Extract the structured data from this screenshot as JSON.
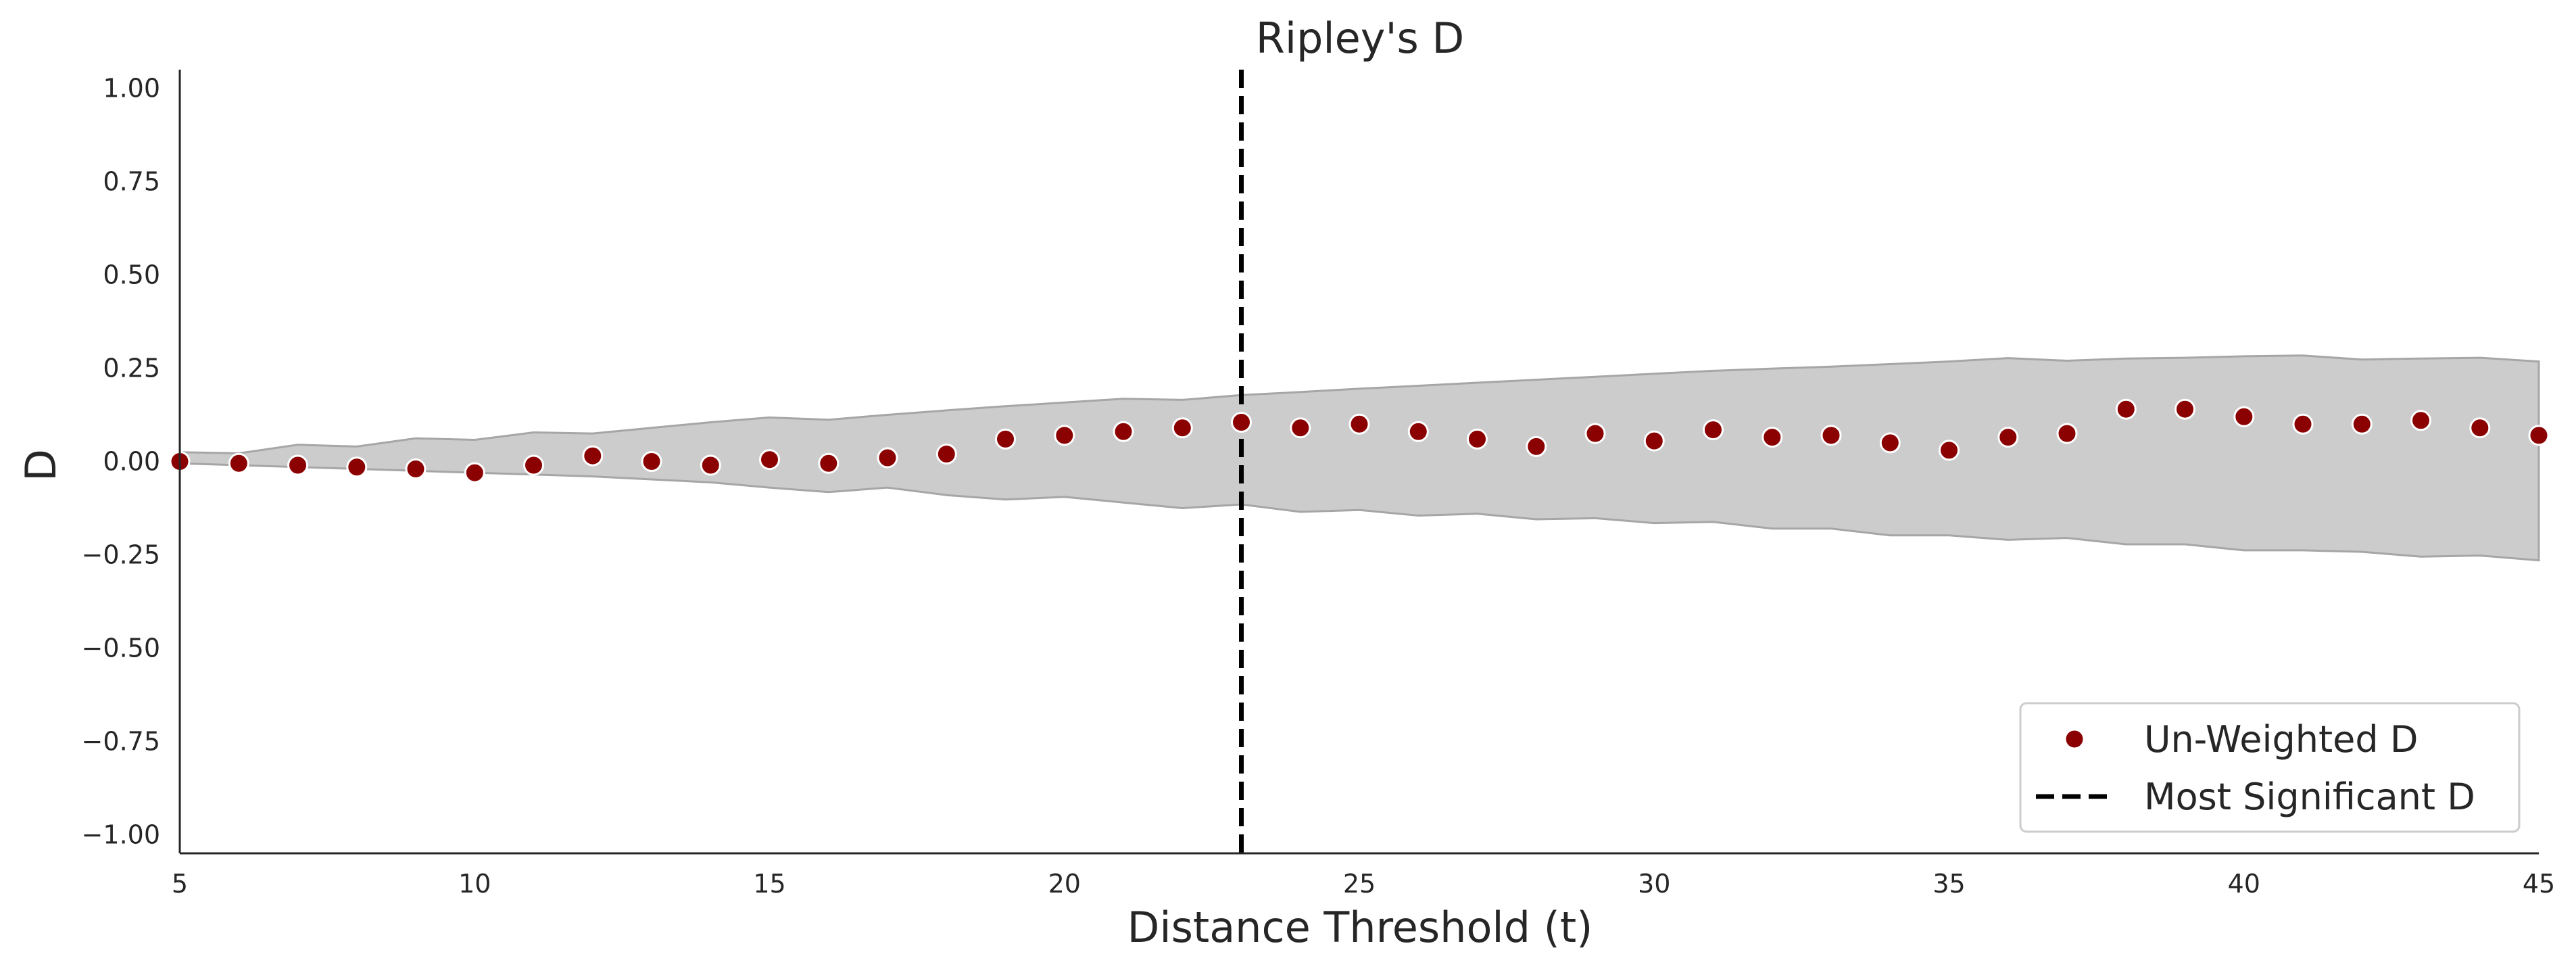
{
  "chart_data": {
    "type": "scatter",
    "title": "Ripley's D",
    "xlabel": "Distance Threshold (t)",
    "ylabel": "D",
    "xlim": [
      5,
      45
    ],
    "ylim": [
      -1.05,
      1.05
    ],
    "xticks": [
      5,
      10,
      15,
      20,
      25,
      30,
      35,
      40,
      45
    ],
    "xtick_labels": [
      "5",
      "10",
      "15",
      "20",
      "25",
      "30",
      "35",
      "40",
      "45"
    ],
    "yticks": [
      1.0,
      0.75,
      0.5,
      0.25,
      0.0,
      -0.25,
      -0.5,
      -0.75,
      -1.0
    ],
    "ytick_labels": [
      "1.00",
      "0.75",
      "0.50",
      "0.25",
      "0.00",
      "−0.25",
      "−0.50",
      "−0.75",
      "−1.00"
    ],
    "grid": false,
    "legend_position": "lower-right",
    "series": [
      {
        "name": "Un-Weighted D",
        "kind": "scatter",
        "color": "#8b0000",
        "x": [
          5,
          6,
          7,
          8,
          9,
          10,
          11,
          12,
          13,
          14,
          15,
          16,
          17,
          18,
          19,
          20,
          21,
          22,
          23,
          24,
          25,
          26,
          27,
          28,
          29,
          30,
          31,
          32,
          33,
          34,
          35,
          36,
          37,
          38,
          39,
          40,
          41,
          42,
          43,
          44,
          45
        ],
        "y": [
          0.0,
          -0.005,
          -0.01,
          -0.015,
          -0.02,
          -0.03,
          -0.01,
          0.015,
          0.0,
          -0.01,
          0.005,
          -0.005,
          0.01,
          0.02,
          0.06,
          0.07,
          0.08,
          0.09,
          0.105,
          0.09,
          0.1,
          0.08,
          0.06,
          0.04,
          0.075,
          0.055,
          0.085,
          0.065,
          0.07,
          0.05,
          0.03,
          0.065,
          0.075,
          0.14,
          0.14,
          0.12,
          0.1,
          0.1,
          0.11,
          0.09,
          0.07
        ]
      },
      {
        "name": "Most Significant D",
        "kind": "vline",
        "color": "#000000",
        "x": 23
      }
    ],
    "envelope": {
      "color": "#cccccc",
      "edge_color": "#a6a6a6",
      "x": [
        5,
        6,
        7,
        8,
        9,
        10,
        11,
        12,
        13,
        14,
        15,
        16,
        17,
        18,
        19,
        20,
        21,
        22,
        23,
        24,
        25,
        26,
        27,
        28,
        29,
        30,
        31,
        32,
        33,
        34,
        35,
        36,
        37,
        38,
        39,
        40,
        41,
        42,
        43,
        44,
        45
      ],
      "upper": [
        0.025,
        0.022,
        0.045,
        0.04,
        0.062,
        0.058,
        0.078,
        0.075,
        0.09,
        0.105,
        0.118,
        0.112,
        0.125,
        0.137,
        0.148,
        0.158,
        0.168,
        0.165,
        0.178,
        0.186,
        0.195,
        0.203,
        0.211,
        0.219,
        0.227,
        0.235,
        0.243,
        0.249,
        0.254,
        0.261,
        0.268,
        0.277,
        0.27,
        0.276,
        0.278,
        0.282,
        0.284,
        0.273,
        0.276,
        0.278,
        0.268
      ],
      "lower": [
        -0.005,
        -0.01,
        -0.015,
        -0.02,
        -0.025,
        -0.03,
        -0.035,
        -0.04,
        -0.048,
        -0.056,
        -0.07,
        -0.082,
        -0.07,
        -0.09,
        -0.102,
        -0.095,
        -0.11,
        -0.125,
        -0.115,
        -0.135,
        -0.13,
        -0.145,
        -0.14,
        -0.155,
        -0.152,
        -0.165,
        -0.162,
        -0.18,
        -0.18,
        -0.198,
        -0.198,
        -0.21,
        -0.205,
        -0.222,
        -0.222,
        -0.238,
        -0.238,
        -0.242,
        -0.255,
        -0.252,
        -0.265
      ]
    },
    "legend": {
      "entries": [
        "Un-Weighted D",
        "Most Significant D"
      ]
    }
  }
}
